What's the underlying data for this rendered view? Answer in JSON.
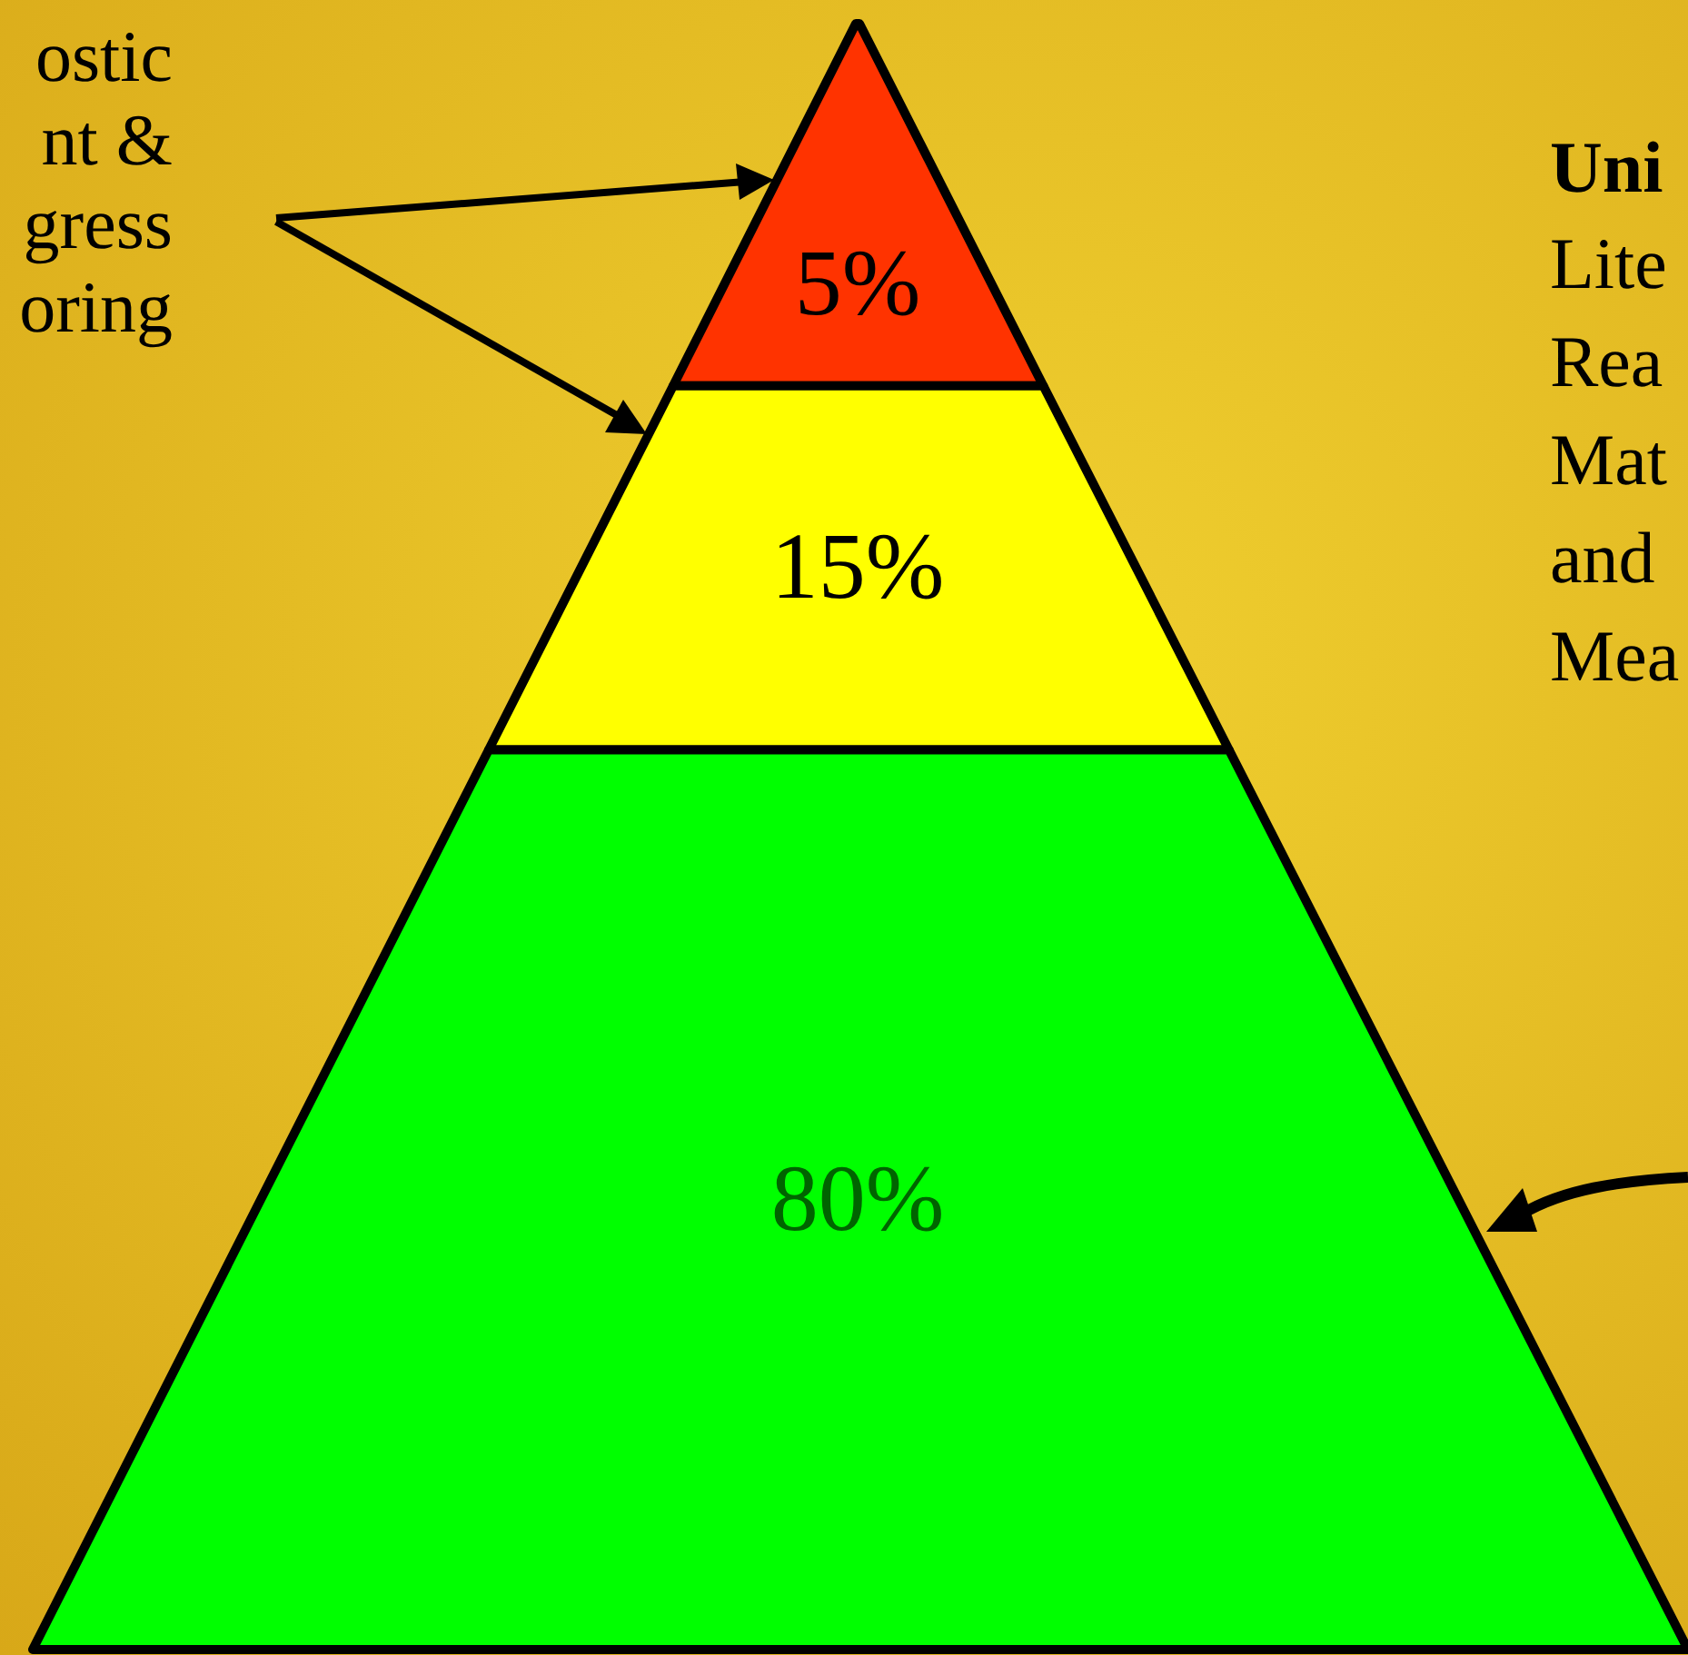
{
  "chart_data": {
    "type": "other",
    "categories": [
      null,
      null,
      null
    ],
    "values": [
      5,
      15,
      80
    ],
    "value_labels": [
      "5%",
      "15%",
      "80%"
    ],
    "colors": [
      "#ff3300",
      "#ffff00",
      "#00ff00"
    ],
    "annotations": [
      "ostic\nnt &\ngress\noring",
      "Uni\nLite\nRea\nMat\nand\nMea"
    ]
  }
}
